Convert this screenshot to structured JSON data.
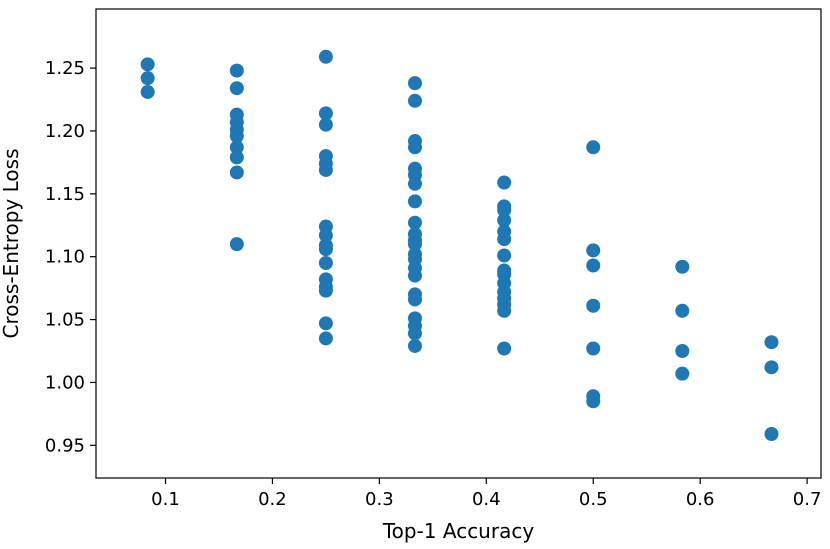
{
  "chart_data": {
    "type": "scatter",
    "title": "",
    "xlabel": "Top-1 Accuracy",
    "ylabel": "Cross-Entropy Loss",
    "xlim": [
      0.035,
      0.713
    ],
    "ylim": [
      0.924,
      1.297
    ],
    "xticks": [
      0.1,
      0.2,
      0.3,
      0.4,
      0.5,
      0.6,
      0.7
    ],
    "xtick_labels": [
      "0.1",
      "0.2",
      "0.3",
      "0.4",
      "0.5",
      "0.6",
      "0.7"
    ],
    "yticks": [
      0.95,
      1.0,
      1.05,
      1.1,
      1.15,
      1.2,
      1.25
    ],
    "ytick_labels": [
      "0.95",
      "1.00",
      "1.05",
      "1.10",
      "1.15",
      "1.20",
      "1.25"
    ],
    "grid": false,
    "marker_color": "#1f77b4",
    "series": [
      {
        "name": "",
        "points": [
          [
            0.0833,
            1.253
          ],
          [
            0.0833,
            1.242
          ],
          [
            0.0833,
            1.231
          ],
          [
            0.1667,
            1.248
          ],
          [
            0.1667,
            1.234
          ],
          [
            0.1667,
            1.213
          ],
          [
            0.1667,
            1.207
          ],
          [
            0.1667,
            1.201
          ],
          [
            0.1667,
            1.196
          ],
          [
            0.1667,
            1.187
          ],
          [
            0.1667,
            1.179
          ],
          [
            0.1667,
            1.167
          ],
          [
            0.1667,
            1.11
          ],
          [
            0.25,
            1.259
          ],
          [
            0.25,
            1.214
          ],
          [
            0.25,
            1.205
          ],
          [
            0.25,
            1.18
          ],
          [
            0.25,
            1.174
          ],
          [
            0.25,
            1.169
          ],
          [
            0.25,
            1.124
          ],
          [
            0.25,
            1.117
          ],
          [
            0.25,
            1.109
          ],
          [
            0.25,
            1.106
          ],
          [
            0.25,
            1.095
          ],
          [
            0.25,
            1.082
          ],
          [
            0.25,
            1.076
          ],
          [
            0.25,
            1.073
          ],
          [
            0.25,
            1.047
          ],
          [
            0.25,
            1.035
          ],
          [
            0.3333,
            1.238
          ],
          [
            0.3333,
            1.224
          ],
          [
            0.3333,
            1.192
          ],
          [
            0.3333,
            1.187
          ],
          [
            0.3333,
            1.17
          ],
          [
            0.3333,
            1.165
          ],
          [
            0.3333,
            1.158
          ],
          [
            0.3333,
            1.144
          ],
          [
            0.3333,
            1.127
          ],
          [
            0.3333,
            1.118
          ],
          [
            0.3333,
            1.113
          ],
          [
            0.3333,
            1.11
          ],
          [
            0.3333,
            1.102
          ],
          [
            0.3333,
            1.098
          ],
          [
            0.3333,
            1.091
          ],
          [
            0.3333,
            1.085
          ],
          [
            0.3333,
            1.07
          ],
          [
            0.3333,
            1.066
          ],
          [
            0.3333,
            1.051
          ],
          [
            0.3333,
            1.045
          ],
          [
            0.3333,
            1.039
          ],
          [
            0.3333,
            1.029
          ],
          [
            0.4167,
            1.159
          ],
          [
            0.4167,
            1.14
          ],
          [
            0.4167,
            1.137
          ],
          [
            0.4167,
            1.129
          ],
          [
            0.4167,
            1.12
          ],
          [
            0.4167,
            1.114
          ],
          [
            0.4167,
            1.101
          ],
          [
            0.4167,
            1.089
          ],
          [
            0.4167,
            1.086
          ],
          [
            0.4167,
            1.079
          ],
          [
            0.4167,
            1.072
          ],
          [
            0.4167,
            1.067
          ],
          [
            0.4167,
            1.062
          ],
          [
            0.4167,
            1.057
          ],
          [
            0.4167,
            1.027
          ],
          [
            0.5,
            1.187
          ],
          [
            0.5,
            1.105
          ],
          [
            0.5,
            1.093
          ],
          [
            0.5,
            1.061
          ],
          [
            0.5,
            1.027
          ],
          [
            0.5,
            0.989
          ],
          [
            0.5,
            0.985
          ],
          [
            0.5833,
            1.092
          ],
          [
            0.5833,
            1.057
          ],
          [
            0.5833,
            1.025
          ],
          [
            0.5833,
            1.007
          ],
          [
            0.6667,
            1.032
          ],
          [
            0.6667,
            1.012
          ],
          [
            0.6667,
            0.959
          ]
        ]
      }
    ]
  }
}
